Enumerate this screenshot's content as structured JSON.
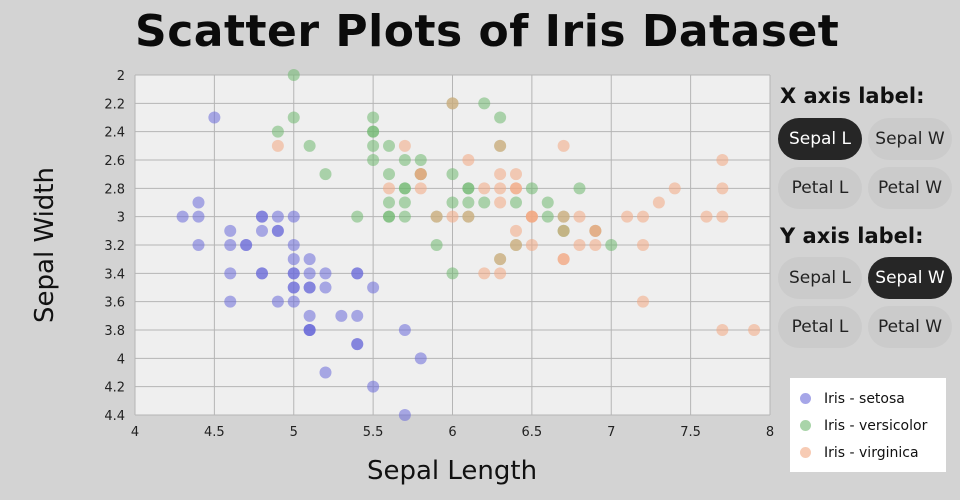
{
  "title": "Scatter Plots of Iris Dataset",
  "x_panel": {
    "heading": "X axis label:",
    "options": [
      "Sepal L",
      "Sepal W",
      "Petal L",
      "Petal W"
    ],
    "selected": "Sepal L"
  },
  "y_panel": {
    "heading": "Y axis label:",
    "options": [
      "Sepal L",
      "Sepal W",
      "Petal L",
      "Petal W"
    ],
    "selected": "Sepal W"
  },
  "chart_data": {
    "type": "scatter",
    "title": "Scatter Plots of Iris Dataset",
    "xlabel": "Sepal Length",
    "ylabel": "Sepal Width",
    "xlim": [
      4,
      8
    ],
    "ylim": [
      2,
      4.4
    ],
    "y_inverted": true,
    "x_ticks": [
      "4",
      "4.5",
      "5",
      "5.5",
      "6",
      "6.5",
      "7",
      "7.5",
      "8"
    ],
    "y_ticks": [
      "2",
      "2.2",
      "2.4",
      "2.6",
      "2.8",
      "3",
      "3.2",
      "3.4",
      "3.6",
      "3.8",
      "4",
      "4.2",
      "4.4"
    ],
    "grid": true,
    "legend_position": "bottom-right",
    "series": [
      {
        "name": "Iris - setosa",
        "color": "#6a6ad8",
        "points": [
          [
            5.1,
            3.5
          ],
          [
            4.9,
            3.0
          ],
          [
            4.7,
            3.2
          ],
          [
            4.6,
            3.1
          ],
          [
            5.0,
            3.6
          ],
          [
            5.4,
            3.9
          ],
          [
            4.6,
            3.4
          ],
          [
            5.0,
            3.4
          ],
          [
            4.4,
            2.9
          ],
          [
            4.9,
            3.1
          ],
          [
            5.4,
            3.7
          ],
          [
            4.8,
            3.4
          ],
          [
            4.8,
            3.0
          ],
          [
            4.3,
            3.0
          ],
          [
            5.8,
            4.0
          ],
          [
            5.7,
            4.4
          ],
          [
            5.4,
            3.9
          ],
          [
            5.1,
            3.5
          ],
          [
            5.7,
            3.8
          ],
          [
            5.1,
            3.8
          ],
          [
            5.4,
            3.4
          ],
          [
            5.1,
            3.7
          ],
          [
            4.6,
            3.6
          ],
          [
            5.1,
            3.3
          ],
          [
            4.8,
            3.4
          ],
          [
            5.0,
            3.0
          ],
          [
            5.0,
            3.4
          ],
          [
            5.2,
            3.5
          ],
          [
            5.2,
            3.4
          ],
          [
            4.7,
            3.2
          ],
          [
            4.8,
            3.1
          ],
          [
            5.4,
            3.4
          ],
          [
            5.2,
            4.1
          ],
          [
            5.5,
            4.2
          ],
          [
            4.9,
            3.1
          ],
          [
            5.0,
            3.2
          ],
          [
            5.5,
            3.5
          ],
          [
            4.9,
            3.6
          ],
          [
            4.4,
            3.0
          ],
          [
            5.1,
            3.4
          ],
          [
            5.0,
            3.5
          ],
          [
            4.5,
            2.3
          ],
          [
            4.4,
            3.2
          ],
          [
            5.0,
            3.5
          ],
          [
            5.1,
            3.8
          ],
          [
            4.8,
            3.0
          ],
          [
            5.1,
            3.8
          ],
          [
            4.6,
            3.2
          ],
          [
            5.3,
            3.7
          ],
          [
            5.0,
            3.3
          ]
        ]
      },
      {
        "name": "Iris - versicolor",
        "color": "#6fb86f",
        "points": [
          [
            7.0,
            3.2
          ],
          [
            6.4,
            3.2
          ],
          [
            6.9,
            3.1
          ],
          [
            5.5,
            2.3
          ],
          [
            6.5,
            2.8
          ],
          [
            5.7,
            2.8
          ],
          [
            6.3,
            3.3
          ],
          [
            4.9,
            2.4
          ],
          [
            6.6,
            2.9
          ],
          [
            5.2,
            2.7
          ],
          [
            5.0,
            2.0
          ],
          [
            5.9,
            3.0
          ],
          [
            6.0,
            2.2
          ],
          [
            6.1,
            2.9
          ],
          [
            5.6,
            2.9
          ],
          [
            6.7,
            3.1
          ],
          [
            5.6,
            3.0
          ],
          [
            5.8,
            2.7
          ],
          [
            6.2,
            2.2
          ],
          [
            5.6,
            2.5
          ],
          [
            5.9,
            3.2
          ],
          [
            6.1,
            2.8
          ],
          [
            6.3,
            2.5
          ],
          [
            6.1,
            2.8
          ],
          [
            6.4,
            2.9
          ],
          [
            6.6,
            3.0
          ],
          [
            6.8,
            2.8
          ],
          [
            6.7,
            3.0
          ],
          [
            6.0,
            2.9
          ],
          [
            5.7,
            2.6
          ],
          [
            5.5,
            2.4
          ],
          [
            5.5,
            2.4
          ],
          [
            5.8,
            2.7
          ],
          [
            6.0,
            2.7
          ],
          [
            5.4,
            3.0
          ],
          [
            6.0,
            3.4
          ],
          [
            6.7,
            3.1
          ],
          [
            6.3,
            2.3
          ],
          [
            5.6,
            3.0
          ],
          [
            5.5,
            2.5
          ],
          [
            5.5,
            2.6
          ],
          [
            6.1,
            3.0
          ],
          [
            5.8,
            2.6
          ],
          [
            5.0,
            2.3
          ],
          [
            5.6,
            2.7
          ],
          [
            5.7,
            3.0
          ],
          [
            5.7,
            2.9
          ],
          [
            6.2,
            2.9
          ],
          [
            5.1,
            2.5
          ],
          [
            5.7,
            2.8
          ]
        ]
      },
      {
        "name": "Iris - virginica",
        "color": "#f2a882",
        "points": [
          [
            6.3,
            3.3
          ],
          [
            5.8,
            2.7
          ],
          [
            7.1,
            3.0
          ],
          [
            6.3,
            2.9
          ],
          [
            6.5,
            3.0
          ],
          [
            7.6,
            3.0
          ],
          [
            4.9,
            2.5
          ],
          [
            7.3,
            2.9
          ],
          [
            6.7,
            2.5
          ],
          [
            7.2,
            3.6
          ],
          [
            6.5,
            3.2
          ],
          [
            6.4,
            2.7
          ],
          [
            6.8,
            3.0
          ],
          [
            5.7,
            2.5
          ],
          [
            5.8,
            2.8
          ],
          [
            6.4,
            3.2
          ],
          [
            6.5,
            3.0
          ],
          [
            7.7,
            3.8
          ],
          [
            7.7,
            2.6
          ],
          [
            6.0,
            2.2
          ],
          [
            6.9,
            3.2
          ],
          [
            5.6,
            2.8
          ],
          [
            7.7,
            2.8
          ],
          [
            6.3,
            2.7
          ],
          [
            6.7,
            3.3
          ],
          [
            7.2,
            3.2
          ],
          [
            6.2,
            2.8
          ],
          [
            6.1,
            3.0
          ],
          [
            6.4,
            2.8
          ],
          [
            7.2,
            3.0
          ],
          [
            7.4,
            2.8
          ],
          [
            7.9,
            3.8
          ],
          [
            6.4,
            2.8
          ],
          [
            6.3,
            2.8
          ],
          [
            6.1,
            2.6
          ],
          [
            7.7,
            3.0
          ],
          [
            6.3,
            3.4
          ],
          [
            6.4,
            3.1
          ],
          [
            6.0,
            3.0
          ],
          [
            6.9,
            3.1
          ],
          [
            6.7,
            3.1
          ],
          [
            6.9,
            3.1
          ],
          [
            5.8,
            2.7
          ],
          [
            6.8,
            3.2
          ],
          [
            6.7,
            3.3
          ],
          [
            6.7,
            3.0
          ],
          [
            6.3,
            2.5
          ],
          [
            6.5,
            3.0
          ],
          [
            6.2,
            3.4
          ],
          [
            5.9,
            3.0
          ]
        ]
      }
    ]
  }
}
